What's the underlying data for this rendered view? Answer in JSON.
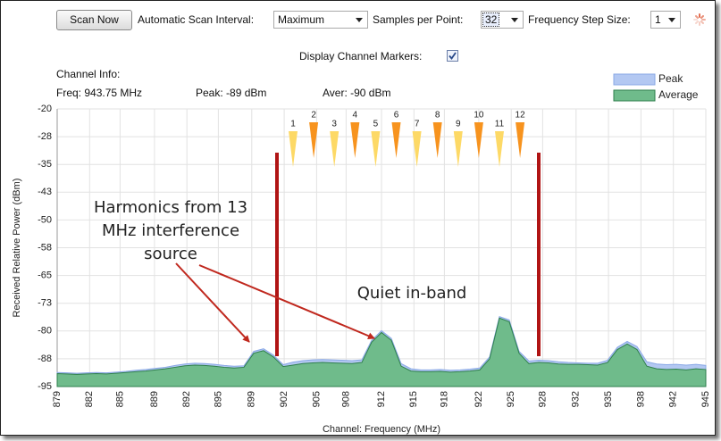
{
  "toolbar": {
    "scan_button": "Scan Now",
    "interval_label": "Automatic Scan Interval:",
    "interval_value": "Maximum",
    "samples_label": "Samples per Point:",
    "samples_value": "32",
    "step_label": "Frequency Step Size:",
    "step_value": "1",
    "markers_label": "Display Channel Markers:",
    "markers_checked": true
  },
  "channel_info": {
    "title": "Channel Info:",
    "freq": "Freq: 943.75 MHz",
    "peak": "Peak: -89 dBm",
    "aver": "Aver: -90 dBm"
  },
  "chart_data": {
    "type": "area",
    "xlabel": "Channel: Frequency (MHz)",
    "ylabel": "Received Relative Power (dBm)",
    "x": [
      879,
      880,
      881,
      882,
      883,
      884,
      885,
      886,
      887,
      888,
      889,
      890,
      891,
      892,
      893,
      894,
      895,
      896,
      897,
      898,
      899,
      900,
      901,
      902,
      903,
      904,
      905,
      906,
      907,
      908,
      909,
      910,
      911,
      912,
      913,
      914,
      915,
      916,
      917,
      918,
      919,
      920,
      921,
      922,
      923,
      924,
      925,
      926,
      927,
      928,
      929,
      930,
      931,
      932,
      933,
      934,
      935,
      936,
      937,
      938,
      939,
      940,
      941,
      942,
      943,
      944,
      945
    ],
    "series": [
      {
        "name": "Peak",
        "color": "#b3c8f2",
        "line_color": "#8aa8e6",
        "values": [
          -91.2,
          -91.3,
          -91.4,
          -91.3,
          -91.2,
          -91.3,
          -91.1,
          -90.9,
          -90.6,
          -90.4,
          -90.1,
          -89.8,
          -89.3,
          -88.9,
          -88.7,
          -88.8,
          -89.0,
          -89.3,
          -89.5,
          -89.4,
          -85.5,
          -84.8,
          -86.5,
          -89.1,
          -88.4,
          -88.0,
          -87.8,
          -87.7,
          -87.8,
          -87.9,
          -88.0,
          -87.8,
          -82.5,
          -79.9,
          -82.0,
          -88.8,
          -90.2,
          -90.5,
          -90.5,
          -90.4,
          -90.6,
          -90.5,
          -90.3,
          -90.0,
          -87.0,
          -76.1,
          -77.0,
          -85.5,
          -88.1,
          -87.9,
          -88.0,
          -88.3,
          -88.5,
          -88.6,
          -88.7,
          -88.7,
          -87.9,
          -84.4,
          -82.8,
          -84.2,
          -88.3,
          -88.9,
          -89.1,
          -89.0,
          -89.2,
          -89.0,
          -89.3
        ]
      },
      {
        "name": "Average",
        "color": "#6fbb8b",
        "line_color": "#2f7f4c",
        "values": [
          -91.5,
          -91.6,
          -91.7,
          -91.6,
          -91.5,
          -91.6,
          -91.4,
          -91.2,
          -91.0,
          -90.8,
          -90.5,
          -90.2,
          -89.8,
          -89.4,
          -89.2,
          -89.3,
          -89.5,
          -89.8,
          -90.0,
          -89.8,
          -86.0,
          -85.3,
          -87.0,
          -89.6,
          -89.2,
          -88.8,
          -88.6,
          -88.5,
          -88.6,
          -88.7,
          -88.8,
          -88.5,
          -83.0,
          -80.4,
          -82.5,
          -89.5,
          -90.8,
          -91.0,
          -91.0,
          -90.9,
          -91.1,
          -91.0,
          -90.8,
          -90.5,
          -87.5,
          -76.5,
          -77.5,
          -86.0,
          -88.8,
          -88.5,
          -88.6,
          -88.9,
          -89.0,
          -89.0,
          -89.1,
          -89.2,
          -88.5,
          -85.0,
          -83.5,
          -85.0,
          -89.5,
          -90.2,
          -90.4,
          -90.3,
          -90.5,
          -90.2,
          -90.4
        ]
      }
    ],
    "xlim": [
      879,
      945
    ],
    "ylim": [
      -95,
      -20
    ],
    "xticks": [
      879,
      {
        "value": 882.3,
        "label": "882"
      },
      {
        "value": 885.4,
        "label": "885"
      },
      {
        "value": 888.9,
        "label": "889"
      },
      {
        "value": 892.2,
        "label": "892"
      },
      {
        "value": 895.4,
        "label": "895"
      },
      {
        "value": 898.8,
        "label": "899"
      },
      {
        "value": 902.1,
        "label": "902"
      },
      {
        "value": 905.4,
        "label": "905"
      },
      {
        "value": 908.4,
        "label": "908"
      },
      912,
      {
        "value": 915.3,
        "label": "915"
      },
      {
        "value": 918.4,
        "label": "918"
      },
      {
        "value": 921.9,
        "label": "922"
      },
      {
        "value": 925.2,
        "label": "925"
      },
      {
        "value": 928.4,
        "label": "928"
      },
      {
        "value": 931.8,
        "label": "932"
      },
      {
        "value": 935.1,
        "label": "935"
      },
      {
        "value": 938.4,
        "label": "938"
      },
      {
        "value": 941.7,
        "label": "942"
      },
      945
    ],
    "yticks": [
      -20,
      {
        "value": -27.5,
        "label": "-28"
      },
      -35,
      {
        "value": -42.5,
        "label": "-43"
      },
      -50,
      {
        "value": -57.5,
        "label": "-58"
      },
      -65,
      {
        "value": -72.5,
        "label": "-73"
      },
      -80,
      {
        "value": -87.5,
        "label": "-88"
      },
      -95
    ],
    "grid": true,
    "legend": "top-right",
    "channel_markers": {
      "labels": [
        "1",
        "2",
        "3",
        "4",
        "5",
        "6",
        "7",
        "8",
        "9",
        "10",
        "11",
        "12"
      ],
      "x": [
        903,
        905.1,
        907.2,
        909.3,
        911.4,
        913.5,
        915.6,
        917.7,
        919.8,
        921.9,
        924,
        926.1
      ],
      "colors": [
        "#fdd966",
        "#f7931e"
      ]
    },
    "annotations": [
      {
        "lines": [
          "Harmonics from 13",
          "MHz interference",
          "source"
        ]
      },
      {
        "lines": [
          "Quiet in-band"
        ]
      }
    ]
  }
}
